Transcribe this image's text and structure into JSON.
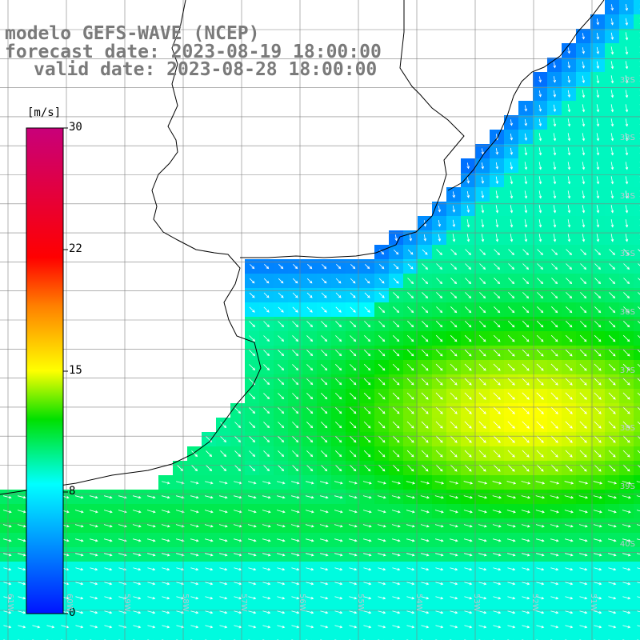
{
  "title": {
    "line1": "modelo GEFS-WAVE (NCEP)",
    "line2": "forecast date: 2023-08-19 18:00:00",
    "line3": "valid date: 2023-08-28 18:00:00"
  },
  "colorbar": {
    "unit": "[m/s]",
    "ticks": [
      "30",
      "22",
      "15",
      "8",
      "0"
    ],
    "stops": [
      {
        "v": 0,
        "c": "#0014ff"
      },
      {
        "v": 8,
        "c": "#00ffff"
      },
      {
        "v": 12,
        "c": "#00e000"
      },
      {
        "v": 15,
        "c": "#ffff00"
      },
      {
        "v": 19,
        "c": "#ff8000"
      },
      {
        "v": 22,
        "c": "#ff0000"
      },
      {
        "v": 30,
        "c": "#c8007a"
      }
    ]
  },
  "lat_labels": [
    "32S",
    "33S",
    "34S",
    "35S",
    "36S",
    "37S",
    "38S",
    "39S",
    "40S"
  ],
  "lon_labels": [
    "61W",
    "60W",
    "59W",
    "58W",
    "57W",
    "56W",
    "55W",
    "54W",
    "53W",
    "52W",
    "51W"
  ],
  "colors": {
    "coastline": "#000000",
    "grid": "#808080",
    "land": "#ffffff",
    "arrow": "#ffffff"
  }
}
